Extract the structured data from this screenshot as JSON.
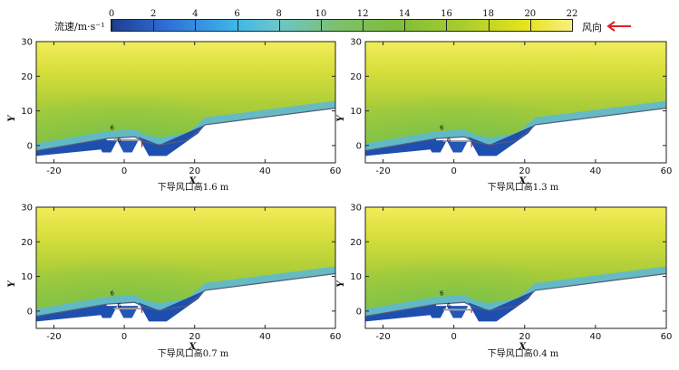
{
  "legend": {
    "title": "流速/m·s⁻¹",
    "ticks": [
      "0",
      "2",
      "4",
      "6",
      "8",
      "10",
      "12",
      "14",
      "16",
      "18",
      "20",
      "22"
    ],
    "tick_values": [
      0,
      2,
      4,
      6,
      8,
      10,
      12,
      14,
      16,
      18,
      20,
      22
    ],
    "min": 0,
    "max": 22,
    "wind_label": "风向",
    "wind_arrow_icon": "left-arrow-icon",
    "wind_arrow_color": "#e02020"
  },
  "chart_data": [
    {
      "type": "heatmap",
      "title": "下导风口高1.6 m",
      "xlabel": "X",
      "ylabel": "Y",
      "xlim": [
        -25,
        60
      ],
      "ylim": [
        -5,
        30
      ],
      "xticks": [
        "-20",
        "0",
        "20",
        "40",
        "60"
      ],
      "yticks": [
        "0",
        "10",
        "20",
        "30"
      ],
      "xtick_values": [
        -20,
        0,
        20,
        40,
        60
      ],
      "ytick_values": [
        0,
        10,
        20,
        30
      ],
      "contour_labels": [
        "6",
        "6"
      ],
      "ground_line": {
        "x": [
          -25,
          -5,
          3,
          6,
          10,
          18,
          23,
          60
        ],
        "y": [
          -1.5,
          2,
          2.5,
          1,
          0.2,
          1.5,
          6,
          10.8
        ]
      },
      "vent_height_m": 1.6
    },
    {
      "type": "heatmap",
      "title": "下导风口高1.3 m",
      "xlabel": "X",
      "ylabel": "Y",
      "xlim": [
        -25,
        60
      ],
      "ylim": [
        -5,
        30
      ],
      "xticks": [
        "-20",
        "0",
        "20",
        "40",
        "60"
      ],
      "yticks": [
        "0",
        "10",
        "20",
        "30"
      ],
      "xtick_values": [
        -20,
        0,
        20,
        40,
        60
      ],
      "ytick_values": [
        0,
        10,
        20,
        30
      ],
      "contour_labels": [
        "6",
        "6"
      ],
      "ground_line": {
        "x": [
          -25,
          -5,
          3,
          6,
          10,
          18,
          23,
          60
        ],
        "y": [
          -1.5,
          2,
          2.5,
          1,
          0.2,
          1.5,
          6,
          10.8
        ]
      },
      "vent_height_m": 1.3
    },
    {
      "type": "heatmap",
      "title": "下导风口高0.7 m",
      "xlabel": "X",
      "ylabel": "Y",
      "xlim": [
        -25,
        60
      ],
      "ylim": [
        -5,
        30
      ],
      "xticks": [
        "-20",
        "0",
        "20",
        "40",
        "60"
      ],
      "yticks": [
        "0",
        "10",
        "20",
        "30"
      ],
      "xtick_values": [
        -20,
        0,
        20,
        40,
        60
      ],
      "ytick_values": [
        0,
        10,
        20,
        30
      ],
      "contour_labels": [
        "6",
        "6"
      ],
      "ground_line": {
        "x": [
          -25,
          -5,
          3,
          6,
          10,
          18,
          23,
          60
        ],
        "y": [
          -1.5,
          2,
          2.5,
          1,
          0.2,
          1.5,
          6,
          10.8
        ]
      },
      "vent_height_m": 0.7
    },
    {
      "type": "heatmap",
      "title": "下导风口高0.4 m",
      "xlabel": "X",
      "ylabel": "Y",
      "xlim": [
        -25,
        60
      ],
      "ylim": [
        -5,
        30
      ],
      "xticks": [
        "-20",
        "0",
        "20",
        "40",
        "60"
      ],
      "yticks": [
        "0",
        "10",
        "20",
        "30"
      ],
      "xtick_values": [
        -20,
        0,
        20,
        40,
        60
      ],
      "ytick_values": [
        0,
        10,
        20,
        30
      ],
      "contour_labels": [
        "6",
        "6"
      ],
      "ground_line": {
        "x": [
          -25,
          -5,
          3,
          6,
          10,
          18,
          23,
          60
        ],
        "y": [
          -1.5,
          2,
          2.5,
          1,
          0.2,
          1.5,
          6,
          10.8
        ]
      },
      "vent_height_m": 0.4
    }
  ]
}
